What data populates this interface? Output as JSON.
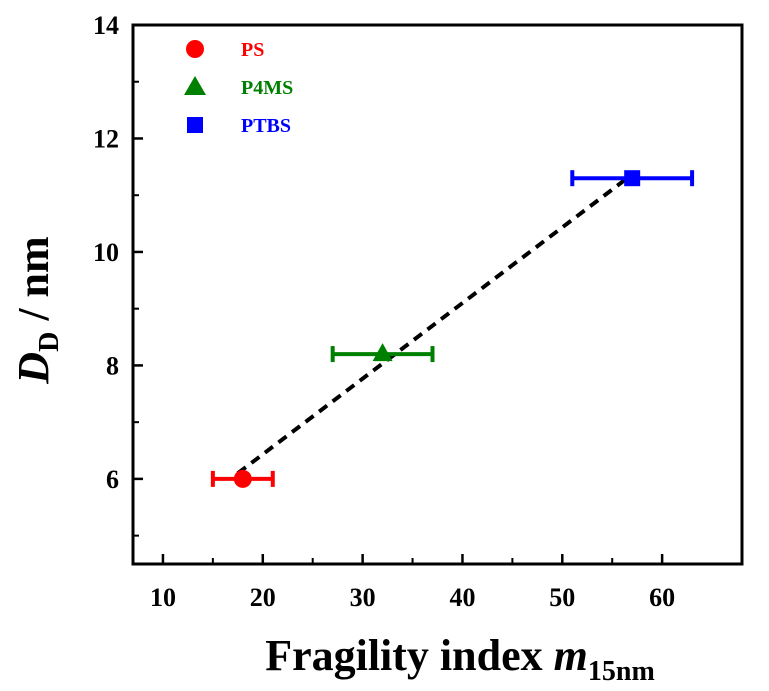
{
  "chart_data": {
    "type": "scatter",
    "xlabel": {
      "main": "Fragility index ",
      "symbol": "m",
      "subscript": "15nm"
    },
    "ylabel": {
      "symbol": "D",
      "subscript": "D",
      "unit": " / nm"
    },
    "xlim": [
      7,
      68
    ],
    "ylim": [
      4.5,
      14
    ],
    "xticks": [
      10,
      20,
      30,
      40,
      50,
      60
    ],
    "yticks": [
      6,
      8,
      10,
      12,
      14
    ],
    "grid": false,
    "legend_position": "top-left",
    "series": [
      {
        "name": "PS",
        "marker": "circle",
        "color": "#ff0000",
        "x": 18,
        "y": 6.0,
        "xerr": 3
      },
      {
        "name": "P4MS",
        "marker": "triangle",
        "color": "#008000",
        "x": 32,
        "y": 8.2,
        "xerr": 5
      },
      {
        "name": "PTBS",
        "marker": "square",
        "color": "#0000ff",
        "x": 57,
        "y": 11.3,
        "xerr": 6
      }
    ],
    "fit_line": {
      "style": "dashed",
      "color": "#000000",
      "x": [
        17.5,
        56.5
      ],
      "y": [
        6.1,
        11.3
      ]
    }
  }
}
